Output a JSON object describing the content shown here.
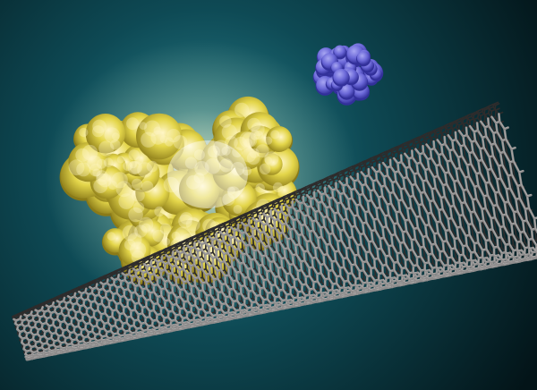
{
  "scene": {
    "background": {
      "center_color": "#2e8a95",
      "mid_color": "#0e4a55",
      "edge_color": "#031418"
    },
    "nanotube": {
      "lattice_color": "#8e8c8c",
      "highlight_color": "#e4e2e0",
      "shadow_color": "#2e2c2c"
    },
    "yellow_protein": {
      "glow_color": "#fff6c8",
      "body_color": "#e4d64a",
      "dark_color": "#8a7a18"
    },
    "blue_protein": {
      "body_color": "#6b68d8",
      "dark_color": "#32309a",
      "light_color": "#a7a6f2"
    }
  }
}
